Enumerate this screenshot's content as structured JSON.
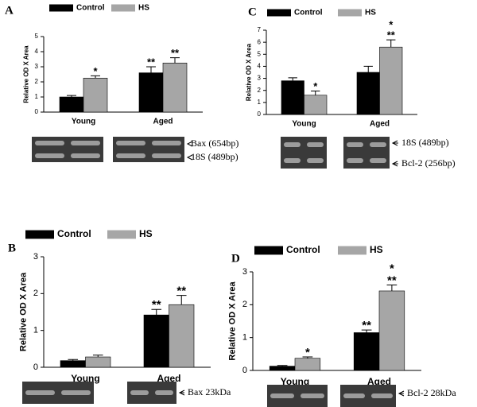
{
  "chart_data": [
    {
      "type": "bar",
      "panel": "A",
      "ylabel": "Relative OD X Area",
      "categories": [
        "Young",
        "Aged"
      ],
      "series": [
        {
          "name": "Control",
          "color": "#000000",
          "values": [
            1.0,
            2.6
          ],
          "errors": [
            0.1,
            0.4
          ],
          "annotations": [
            null,
            [
              "**"
            ]
          ]
        },
        {
          "name": "HS",
          "color": "#a6a6a6",
          "values": [
            2.25,
            3.25
          ],
          "errors": [
            0.15,
            0.35
          ],
          "annotations": [
            [
              "*"
            ],
            [
              "**"
            ]
          ]
        }
      ],
      "ylim": [
        0,
        5
      ],
      "yticks": [
        0,
        1,
        2,
        3,
        4,
        5
      ],
      "bands": [
        "Bax (654bp)",
        "18S (489bp)"
      ]
    },
    {
      "type": "bar",
      "panel": "B",
      "ylabel": "Relative OD X Area",
      "categories": [
        "Young",
        "Aged"
      ],
      "series": [
        {
          "name": "Control",
          "color": "#000000",
          "values": [
            0.18,
            1.42
          ],
          "errors": [
            0.03,
            0.15
          ],
          "annotations": [
            null,
            [
              "**"
            ]
          ]
        },
        {
          "name": "HS",
          "color": "#a6a6a6",
          "values": [
            0.28,
            1.7
          ],
          "errors": [
            0.05,
            0.25
          ],
          "annotations": [
            null,
            [
              "**"
            ]
          ]
        }
      ],
      "ylim": [
        0,
        3
      ],
      "yticks": [
        0,
        1,
        2,
        3
      ],
      "bands": [
        "Bax 23kDa"
      ]
    },
    {
      "type": "bar",
      "panel": "C",
      "ylabel": "Relative OD X Area",
      "categories": [
        "Young",
        "Aged"
      ],
      "series": [
        {
          "name": "Control",
          "color": "#000000",
          "values": [
            2.8,
            3.5
          ],
          "errors": [
            0.25,
            0.5
          ],
          "annotations": [
            null,
            null
          ]
        },
        {
          "name": "HS",
          "color": "#a6a6a6",
          "values": [
            1.6,
            5.6
          ],
          "errors": [
            0.35,
            0.6
          ],
          "annotations": [
            [
              "*"
            ],
            [
              "**",
              "*"
            ]
          ]
        }
      ],
      "ylim": [
        0,
        7
      ],
      "yticks": [
        0,
        1,
        2,
        3,
        4,
        5,
        6,
        7
      ],
      "bands": [
        "18S (489bp)",
        "Bcl-2 (256bp)"
      ]
    },
    {
      "type": "bar",
      "panel": "D",
      "ylabel": "Relative OD X Area",
      "categories": [
        "Young",
        "Aged"
      ],
      "series": [
        {
          "name": "Control",
          "color": "#000000",
          "values": [
            0.13,
            1.15
          ],
          "errors": [
            0.02,
            0.08
          ],
          "annotations": [
            null,
            [
              "**"
            ]
          ]
        },
        {
          "name": "HS",
          "color": "#a6a6a6",
          "values": [
            0.37,
            2.42
          ],
          "errors": [
            0.04,
            0.18
          ],
          "annotations": [
            [
              "*"
            ],
            [
              "**",
              "*"
            ]
          ]
        }
      ],
      "ylim": [
        0,
        3
      ],
      "yticks": [
        0,
        1,
        2,
        3
      ],
      "bands": [
        "Bcl-2 28kDa"
      ]
    }
  ]
}
